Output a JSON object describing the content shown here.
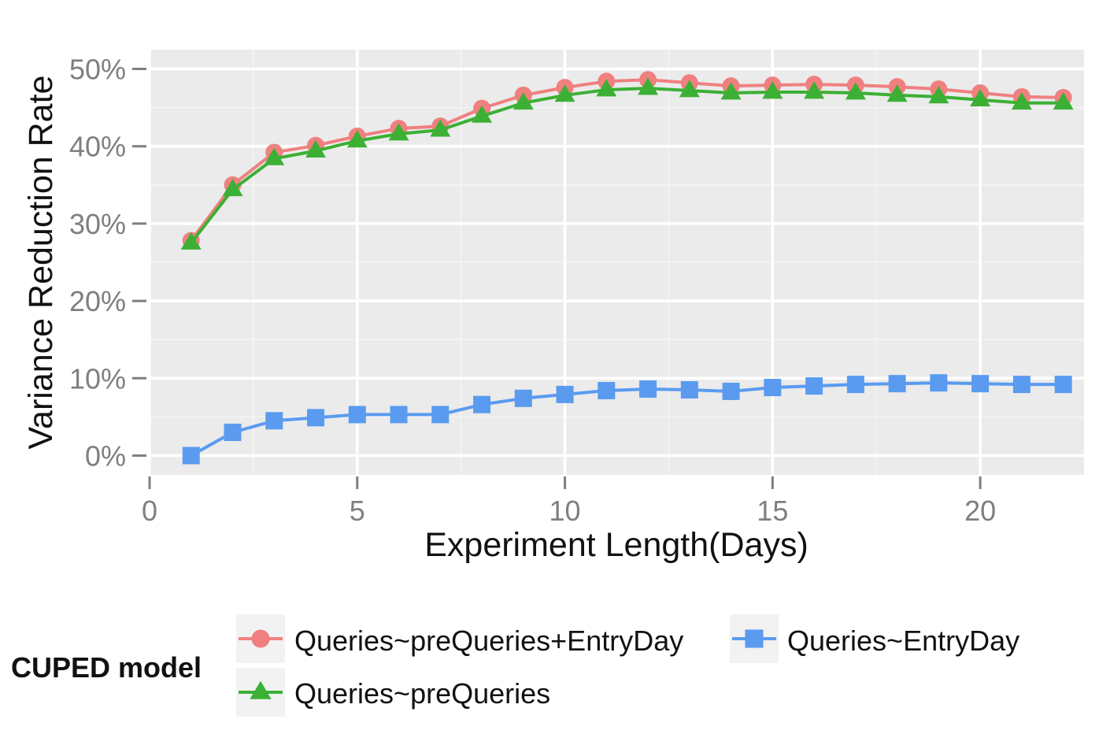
{
  "chart_data": {
    "type": "line",
    "title": "",
    "xlabel": "Experiment Length(Days)",
    "ylabel": "Variance Reduction Rate",
    "xlim": [
      0,
      22.5
    ],
    "ylim": [
      -2.5,
      52.5
    ],
    "x_ticks": [
      0,
      5,
      10,
      15,
      20
    ],
    "x_tick_labels": [
      "0",
      "5",
      "10",
      "15",
      "20"
    ],
    "y_ticks": [
      0,
      10,
      20,
      30,
      40,
      50
    ],
    "y_tick_labels": [
      "0%",
      "10%",
      "20%",
      "30%",
      "40%",
      "50%"
    ],
    "grid": true,
    "legend_title": "CUPED model",
    "legend_position": "bottom",
    "series": [
      {
        "name": "Queries~preQueries+EntryDay",
        "color": "#f08080",
        "marker": "circle",
        "x": [
          1,
          2,
          3,
          4,
          5,
          6,
          7,
          8,
          9,
          10,
          11,
          12,
          13,
          14,
          15,
          16,
          17,
          18,
          19,
          20,
          21,
          22
        ],
        "values": [
          27.8,
          35.0,
          39.2,
          40.1,
          41.3,
          42.3,
          42.6,
          44.9,
          46.6,
          47.6,
          48.4,
          48.6,
          48.2,
          47.8,
          47.9,
          48.0,
          47.9,
          47.7,
          47.4,
          46.9,
          46.4,
          46.3
        ]
      },
      {
        "name": "Queries~preQueries",
        "color": "#3cb034",
        "marker": "triangle",
        "x": [
          1,
          2,
          3,
          4,
          5,
          6,
          7,
          8,
          9,
          10,
          11,
          12,
          13,
          14,
          15,
          16,
          17,
          18,
          19,
          20,
          21,
          22
        ],
        "values": [
          27.5,
          34.4,
          38.4,
          39.4,
          40.7,
          41.6,
          42.1,
          43.9,
          45.6,
          46.6,
          47.3,
          47.5,
          47.2,
          46.9,
          47.0,
          47.0,
          46.9,
          46.6,
          46.4,
          46.0,
          45.6,
          45.6
        ]
      },
      {
        "name": "Queries~EntryDay",
        "color": "#5a9bf0",
        "marker": "square",
        "x": [
          1,
          2,
          3,
          4,
          5,
          6,
          7,
          8,
          9,
          10,
          11,
          12,
          13,
          14,
          15,
          16,
          17,
          18,
          19,
          20,
          21,
          22
        ],
        "values": [
          0.0,
          3.0,
          4.5,
          4.9,
          5.3,
          5.3,
          5.3,
          6.6,
          7.4,
          7.9,
          8.4,
          8.6,
          8.5,
          8.3,
          8.8,
          9.0,
          9.2,
          9.3,
          9.4,
          9.3,
          9.2,
          9.2
        ]
      }
    ]
  }
}
